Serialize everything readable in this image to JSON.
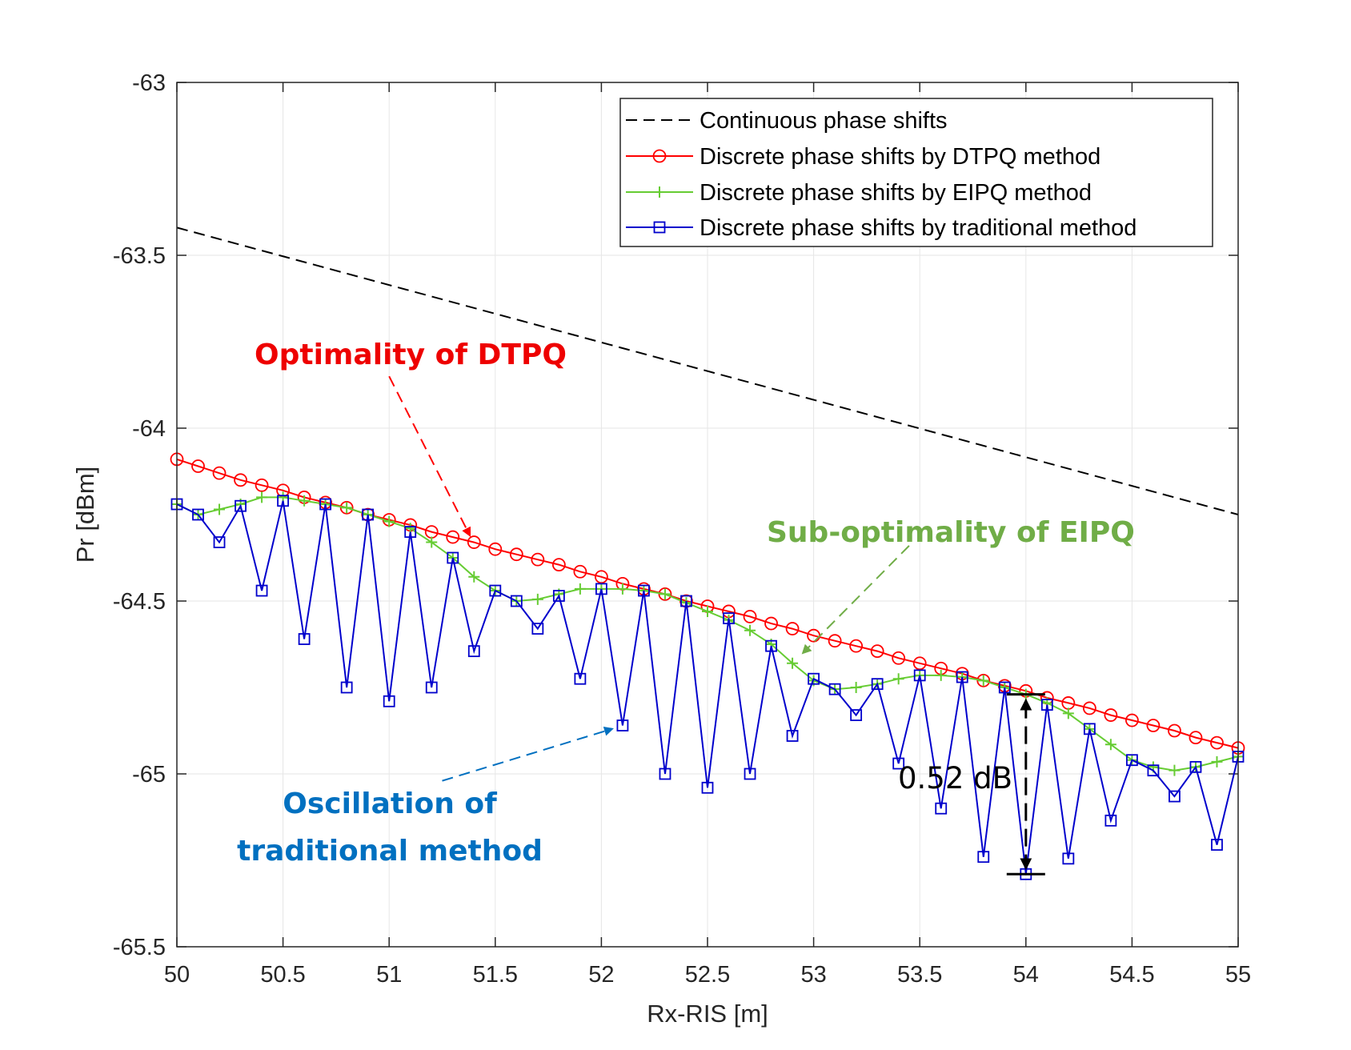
{
  "chart_data": {
    "type": "line",
    "xlabel": "Rx-RIS [m]",
    "ylabel": "Pr [dBm]",
    "xlim": [
      50,
      55
    ],
    "ylim": [
      -65.5,
      -63
    ],
    "xticks": [
      50,
      50.5,
      51,
      51.5,
      52,
      52.5,
      53,
      53.5,
      54,
      54.5,
      55
    ],
    "xtick_labels": [
      "50",
      "50.5",
      "51",
      "51.5",
      "52",
      "52.5",
      "53",
      "53.5",
      "54",
      "54.5",
      "55"
    ],
    "yticks": [
      -63,
      -63.5,
      -64,
      -64.5,
      -65,
      -65.5
    ],
    "ytick_labels": [
      "-63",
      "-63.5",
      "-64",
      "-64.5",
      "-65",
      "-65.5"
    ],
    "grid": true,
    "legend_position": "top-right",
    "x": [
      50.0,
      50.1,
      50.2,
      50.3,
      50.4,
      50.5,
      50.6,
      50.7,
      50.8,
      50.9,
      51.0,
      51.1,
      51.2,
      51.3,
      51.4,
      51.5,
      51.6,
      51.7,
      51.8,
      51.9,
      52.0,
      52.1,
      52.2,
      52.3,
      52.4,
      52.5,
      52.6,
      52.7,
      52.8,
      52.9,
      53.0,
      53.1,
      53.2,
      53.3,
      53.4,
      53.5,
      53.6,
      53.7,
      53.8,
      53.9,
      54.0,
      54.1,
      54.2,
      54.3,
      54.4,
      54.5,
      54.6,
      54.7,
      54.8,
      54.9,
      55.0
    ],
    "series": [
      {
        "name": "Continuous phase shifts",
        "style": "dashed",
        "color": "#000000",
        "marker": "none",
        "x": [
          50,
          55
        ],
        "values": [
          -63.42,
          -64.25
        ]
      },
      {
        "name": "Discrete phase shifts by DTPQ method",
        "style": "solid",
        "color": "#ff0000",
        "marker": "circle",
        "values": [
          -64.09,
          -64.11,
          -64.13,
          -64.15,
          -64.165,
          -64.18,
          -64.2,
          -64.215,
          -64.23,
          -64.25,
          -64.265,
          -64.28,
          -64.3,
          -64.315,
          -64.33,
          -64.35,
          -64.365,
          -64.38,
          -64.395,
          -64.415,
          -64.43,
          -64.45,
          -64.465,
          -64.48,
          -64.5,
          -64.515,
          -64.53,
          -64.545,
          -64.565,
          -64.58,
          -64.6,
          -64.615,
          -64.63,
          -64.645,
          -64.665,
          -64.68,
          -64.695,
          -64.71,
          -64.73,
          -64.745,
          -64.76,
          -64.78,
          -64.795,
          -64.81,
          -64.83,
          -64.845,
          -64.86,
          -64.875,
          -64.895,
          -64.91,
          -64.925
        ]
      },
      {
        "name": "Discrete phase shifts by EIPQ method",
        "style": "solid",
        "color": "#66cc33",
        "marker": "plus",
        "values": [
          -64.22,
          -64.25,
          -64.235,
          -64.22,
          -64.2,
          -64.2,
          -64.21,
          -64.22,
          -64.23,
          -64.25,
          -64.27,
          -64.29,
          -64.33,
          -64.375,
          -64.43,
          -64.47,
          -64.5,
          -64.495,
          -64.48,
          -64.465,
          -64.465,
          -64.465,
          -64.47,
          -64.48,
          -64.505,
          -64.53,
          -64.555,
          -64.585,
          -64.625,
          -64.68,
          -64.73,
          -64.755,
          -64.75,
          -64.74,
          -64.725,
          -64.715,
          -64.715,
          -64.72,
          -64.73,
          -64.75,
          -64.77,
          -64.795,
          -64.825,
          -64.87,
          -64.915,
          -64.96,
          -64.98,
          -64.99,
          -64.98,
          -64.965,
          -64.95
        ]
      },
      {
        "name": "Discrete phase shifts by traditional method",
        "style": "solid",
        "color": "#0000cc",
        "marker": "square",
        "values": [
          -64.22,
          -64.25,
          -64.33,
          -64.225,
          -64.47,
          -64.21,
          -64.61,
          -64.22,
          -64.75,
          -64.25,
          -64.79,
          -64.3,
          -64.75,
          -64.375,
          -64.645,
          -64.47,
          -64.5,
          -64.58,
          -64.485,
          -64.725,
          -64.465,
          -64.86,
          -64.47,
          -65.0,
          -64.5,
          -65.04,
          -64.55,
          -65.0,
          -64.63,
          -64.89,
          -64.725,
          -64.755,
          -64.83,
          -64.74,
          -64.97,
          -64.715,
          -65.1,
          -64.72,
          -65.24,
          -64.75,
          -65.29,
          -64.8,
          -65.245,
          -64.87,
          -65.135,
          -64.96,
          -64.99,
          -65.065,
          -64.98,
          -65.205,
          -64.95
        ]
      }
    ],
    "annotations": [
      {
        "text": "Optimality of DTPQ",
        "color": "#ee0000",
        "arrow_from": [
          51.0,
          -63.85
        ],
        "arrow_to": [
          51.38,
          -64.31
        ]
      },
      {
        "text": "Sub-optimality of EIPQ",
        "color": "#70ad47",
        "arrow_from": [
          53.45,
          -64.34
        ],
        "arrow_to": [
          52.95,
          -64.65
        ]
      },
      {
        "text": "Oscillation of",
        "text2": "traditional method",
        "color": "#0070c0",
        "arrow_from": [
          51.25,
          -65.02
        ],
        "arrow_to": [
          52.05,
          -64.87
        ]
      },
      {
        "text": "0.52 dB",
        "color": "#000000",
        "bracket_x": 54.0,
        "bracket_top": -64.77,
        "bracket_bottom": -65.29
      }
    ]
  }
}
